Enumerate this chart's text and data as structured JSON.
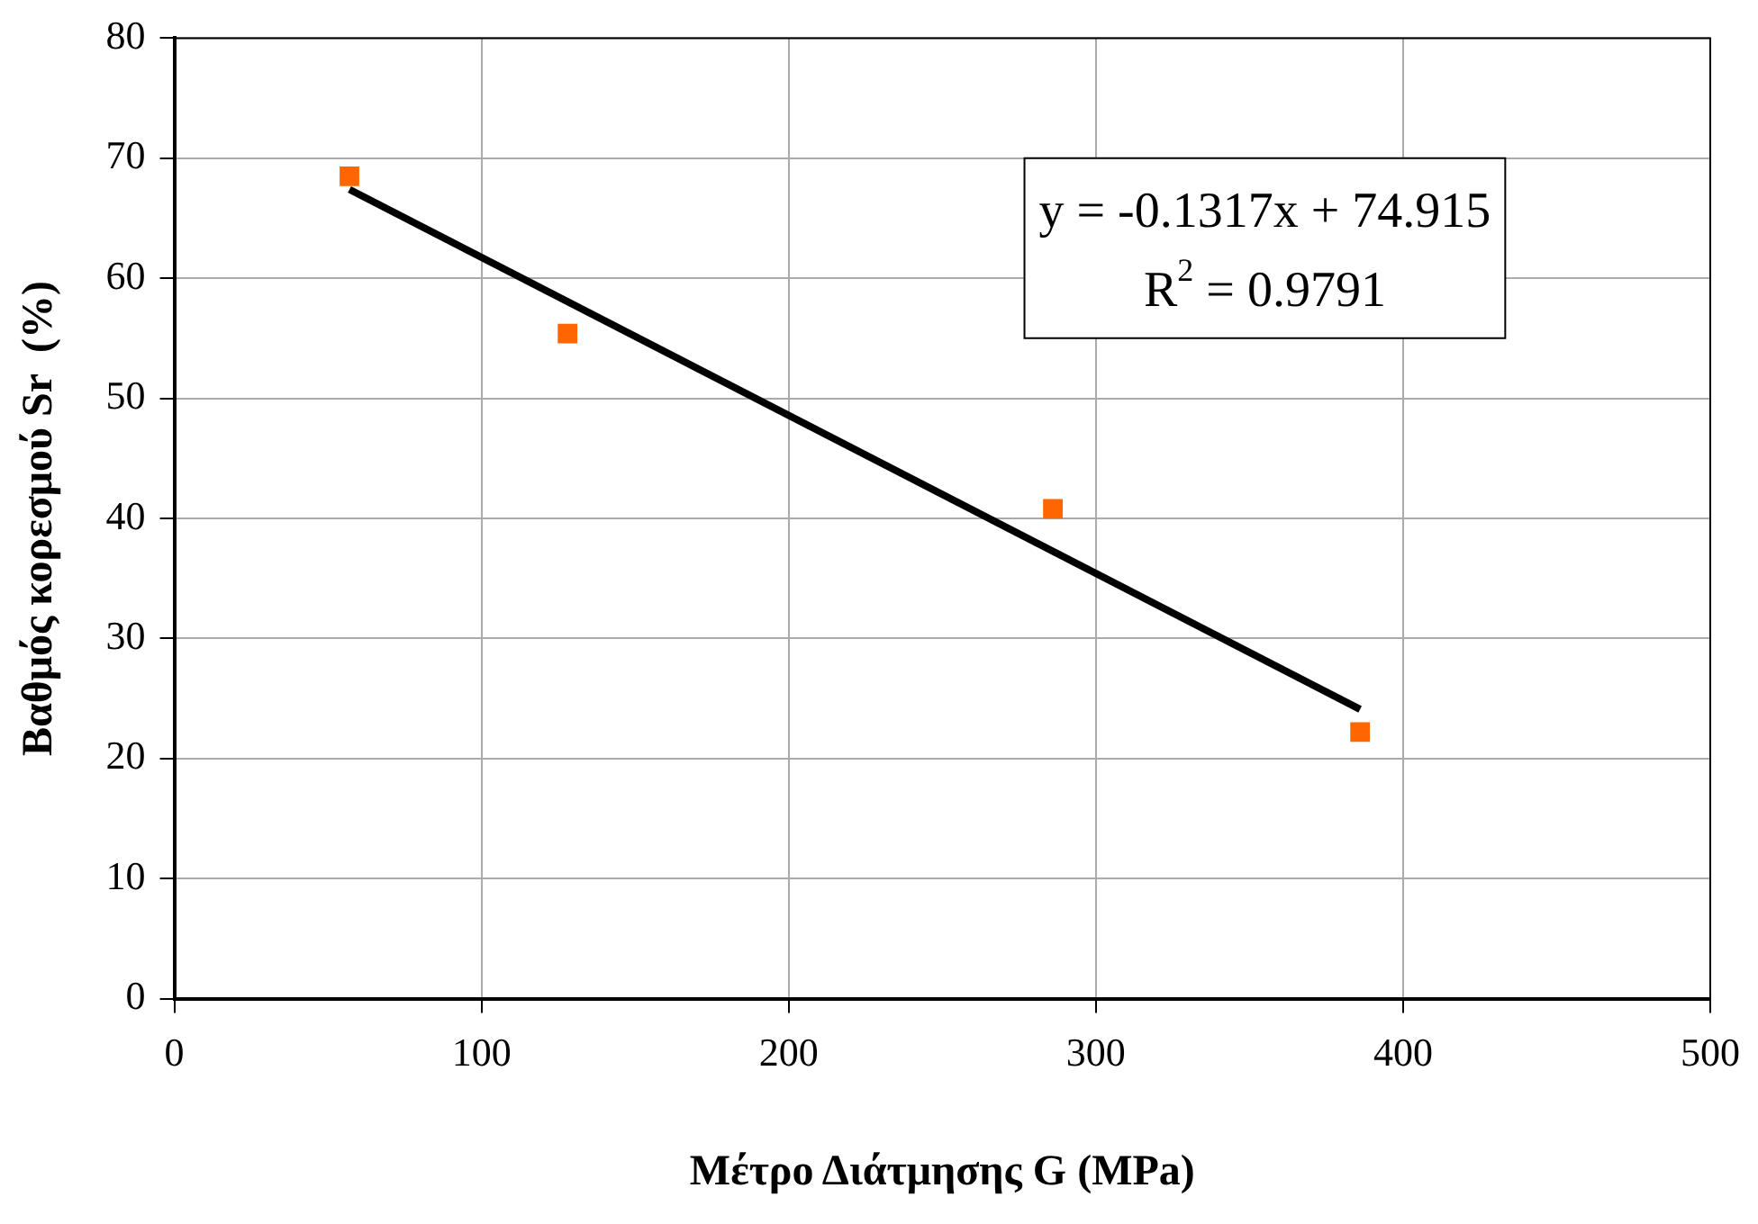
{
  "chart_data": {
    "type": "scatter",
    "xlabel": "Μέτρο Διάτμησης G (MPa)",
    "ylabel": "Βαθμός κορεσμού Sr  (%)",
    "x": [
      57,
      128,
      286,
      386
    ],
    "series": [
      {
        "color": "#ff6600",
        "marker": "square",
        "values": [
          68.5,
          55.4,
          40.8,
          22.2
        ]
      },
      {
        "type": "line",
        "color": "#000000",
        "marker": "none",
        "line_style": "solid",
        "x": [
          57,
          386
        ],
        "values": [
          67.4,
          24.1
        ]
      }
    ],
    "xlim": [
      0,
      500
    ],
    "xticks": [
      0,
      100,
      200,
      300,
      400,
      500
    ],
    "ylim": [
      0,
      80
    ],
    "yticks": [
      0,
      10,
      20,
      30,
      40,
      50,
      60,
      70,
      80
    ],
    "grid": true,
    "legend": false,
    "annotations": [
      "y = -0.1317x + 74.915",
      "R$^{2}$ = 0.9791"
    ]
  }
}
